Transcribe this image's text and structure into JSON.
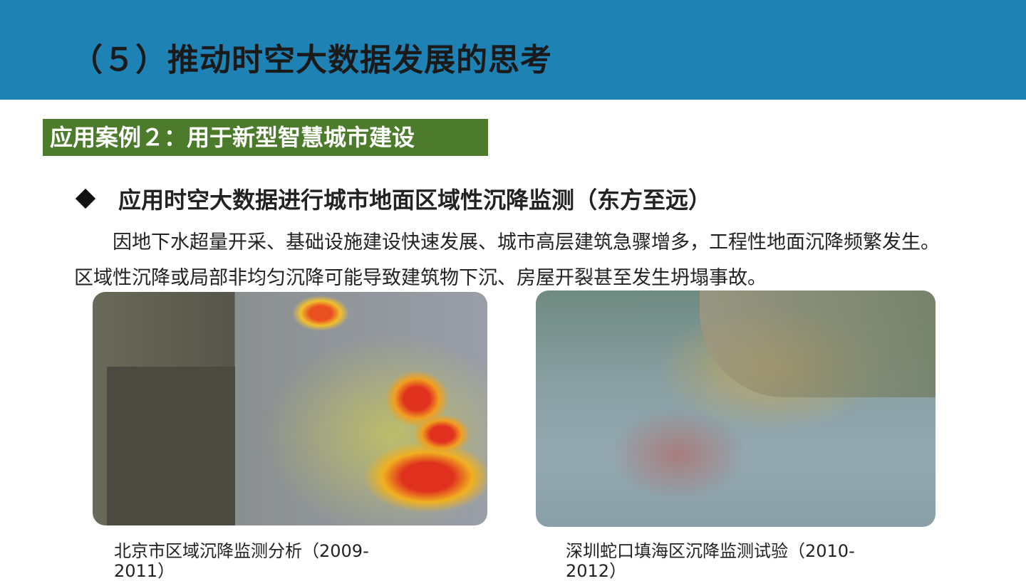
{
  "header": {
    "title": "（５）推动时空大数据发展的思考",
    "color": "#1f82b4"
  },
  "case_label": {
    "text": "应用案例２：用于新型智慧城市建设",
    "color": "#4b7b2b"
  },
  "bullet": {
    "icon": "diamond-bullet-icon",
    "text": "应用时空大数据进行城市地面区域性沉降监测（东方至远）"
  },
  "body": {
    "paragraph": "因地下水超量开采、基础设施建设快速发展、城市高层建筑急骤增多，工程性地面沉降频繁发生。区域性沉降或局部非均匀沉降可能导致建筑物下沉、房屋开裂甚至发生坍塌事故。"
  },
  "figures": [
    {
      "caption": "北京市区域沉降监测分析（2009-2011）"
    },
    {
      "caption": "深圳蛇口填海区沉降监测试验（2010-2012）"
    }
  ]
}
